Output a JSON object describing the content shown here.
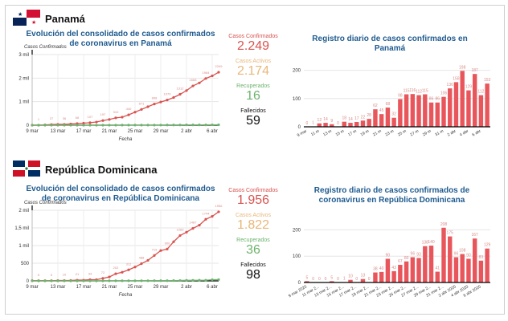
{
  "countries": [
    {
      "name": "Panamá",
      "line_title": "Evolución del consolidado de casos confirmados de coronavirus en Panamá",
      "bar_title": "Registro diario de casos confirmados en Panamá",
      "stats": {
        "confirmed_label": "Casos Confirmados",
        "confirmed": "2.249",
        "active_label": "Casos Activos",
        "active": "2.174",
        "recovered_label": "Recuperados",
        "recovered": "16",
        "deaths_label": "Fallecidos",
        "deaths": "59"
      }
    },
    {
      "name": "República Dominicana",
      "line_title": "Evolución del consolidado de casos confirmados de coronavirus en República Dominicana",
      "bar_title": "Registro diario de casos confirmados de coronavirus en República Dominicana",
      "stats": {
        "confirmed_label": "Casos Confirmados",
        "confirmed": "1.956",
        "active_label": "Casos Activos",
        "active": "1.822",
        "recovered_label": "Recuperados",
        "recovered": "36",
        "deaths_label": "Fallecidos",
        "deaths": "98"
      }
    }
  ],
  "colors": {
    "confirmed": "#d9534f",
    "active": "#e8b77a",
    "recovered": "#6db36d",
    "deaths": "#111111",
    "title": "#1f5b8f",
    "bar": "#e8565b"
  },
  "chart_data": [
    {
      "type": "line",
      "country": "Panamá",
      "ylabel": "Casos Confirmados",
      "xlabel": "Fecha",
      "yticks": [
        0,
        1000,
        2000,
        3000
      ],
      "ytick_labels": [
        "0",
        "1 mil",
        "2 mil",
        "3 mil"
      ],
      "ylim": [
        0,
        3000
      ],
      "xtick_labels": [
        "9 mar",
        "13 mar",
        "17 mar",
        "21 mar",
        "25 mar",
        "29 mar",
        "2 abr",
        "6 abr"
      ],
      "series": [
        {
          "values": [
            0,
            1,
            13,
            27,
            36,
            36,
            54,
            68,
            85,
            107,
            135,
            197,
            242,
            310,
            342,
            440,
            555,
            671,
            783,
            898,
            984,
            1070,
            1176,
            1312,
            1470,
            1668,
            1797,
            1984,
            2096,
            2249
          ]
        },
        {
          "values": [
            0,
            0,
            0,
            0,
            0,
            0,
            1,
            1,
            1,
            1,
            1,
            1,
            2,
            2,
            3,
            3,
            3,
            4,
            4,
            5,
            6,
            8,
            9,
            10,
            12,
            13,
            13,
            14,
            15,
            16
          ]
        }
      ]
    },
    {
      "type": "bar",
      "country": "Panamá",
      "yticks": [
        0,
        100,
        200
      ],
      "ylim": [
        0,
        250
      ],
      "xtick_labels": [
        "9 mar",
        "11 m",
        "13 m",
        "15 m",
        "17 m",
        "19 m",
        "21 m",
        "23 m",
        "25 m",
        "27 m",
        "29 m",
        "31 m",
        "2 abr",
        "4 abr",
        "6 abr"
      ],
      "values": [
        0,
        1,
        12,
        14,
        9,
        0,
        18,
        14,
        17,
        22,
        28,
        62,
        45,
        68,
        32,
        98,
        115,
        116,
        112,
        115,
        86,
        86,
        106,
        136,
        158,
        198,
        129,
        187,
        112,
        153
      ]
    },
    {
      "type": "line",
      "country": "República Dominicana",
      "ylabel": "Casos Confirmados",
      "xlabel": "Fecha",
      "yticks": [
        0,
        500,
        1000,
        1500,
        2000
      ],
      "ytick_labels": [
        "0",
        "500",
        "1 mil",
        "1,5 mil",
        "2 mil"
      ],
      "ylim": [
        0,
        2000
      ],
      "xtick_labels": [
        "9 mar",
        "13 mar",
        "17 mar",
        "21 mar",
        "25 mar",
        "29 mar",
        "2 abr",
        "6 abr"
      ],
      "series": [
        {
          "values": [
            5,
            5,
            5,
            5,
            10,
            10,
            11,
            21,
            21,
            34,
            34,
            72,
            112,
            202,
            245,
            312,
            392,
            488,
            581,
            719,
            859,
            900,
            1108,
            1283,
            1379,
            1487,
            1577,
            1744,
            1827,
            1956
          ]
        },
        {
          "values": [
            0,
            0,
            0,
            0,
            0,
            0,
            0,
            0,
            0,
            0,
            0,
            1,
            2,
            2,
            3,
            3,
            3,
            4,
            4,
            5,
            5,
            6,
            8,
            10,
            16,
            16,
            17,
            17,
            33,
            36
          ]
        }
      ]
    },
    {
      "type": "bar",
      "country": "República Dominicana",
      "yticks": [
        0,
        100,
        200
      ],
      "ylim": [
        0,
        250
      ],
      "xtick_labels": [
        "9 mar 2020",
        "11 mar 2...",
        "13 mar 2...",
        "15 mar 2...",
        "17 mar 2...",
        "19 mar 2...",
        "21 mar 2...",
        "23 mar 2...",
        "25 mar 2...",
        "27 mar 2...",
        "29 mar 2...",
        "31 mar 2...",
        "2 abr 2020",
        "4 abr 2020",
        "6 abr 2020"
      ],
      "values": [
        5,
        0,
        0,
        0,
        5,
        0,
        1,
        10,
        0,
        13,
        0,
        38,
        40,
        90,
        43,
        67,
        80,
        96,
        93,
        138,
        140,
        41,
        208,
        175,
        96,
        108,
        90,
        167,
        83,
        129
      ]
    }
  ]
}
